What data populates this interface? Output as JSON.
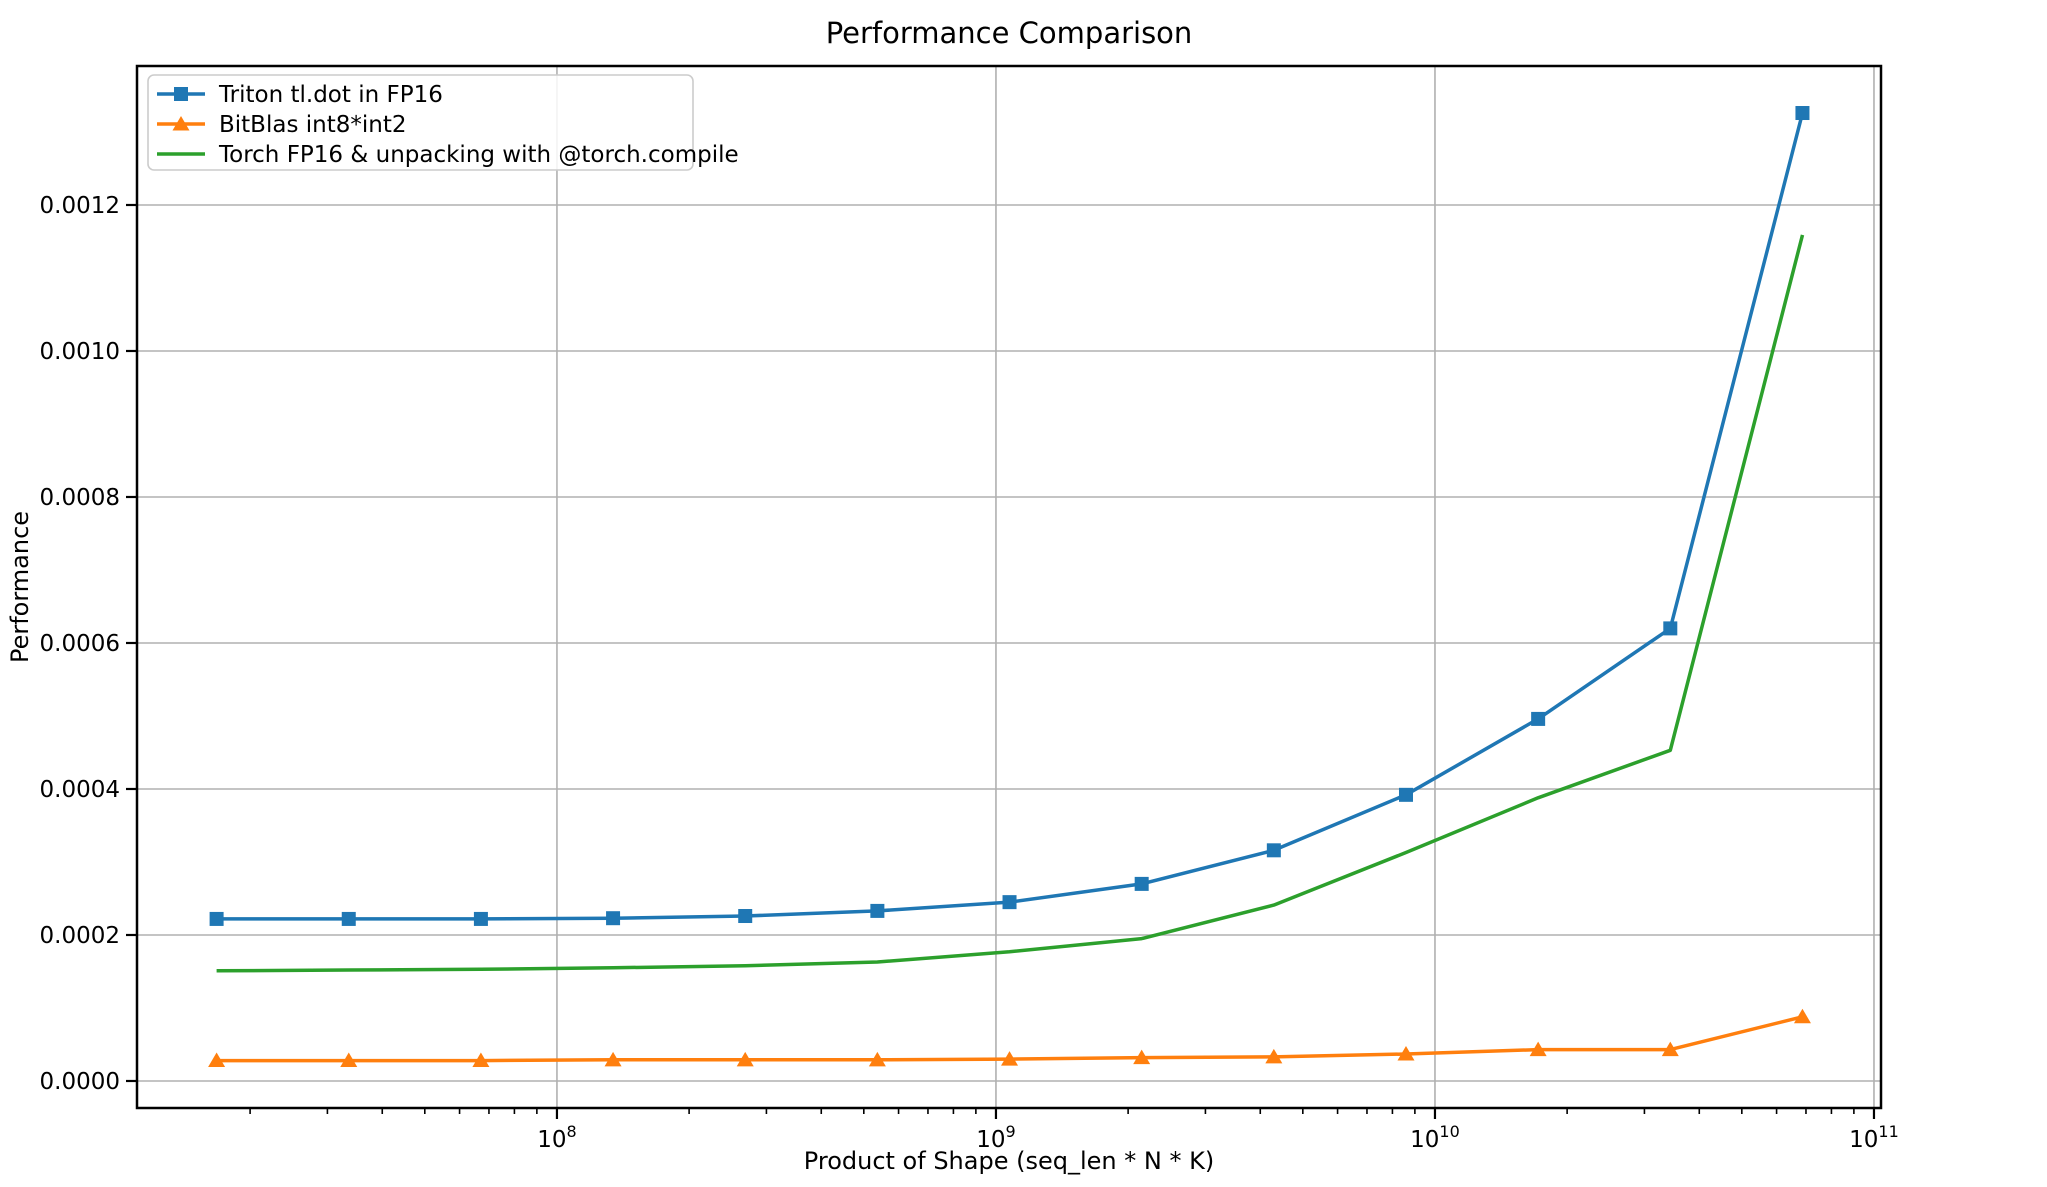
{
  "chart_data": {
    "type": "line",
    "title": "Performance Comparison",
    "xlabel": "Product of Shape (seq_len * N * K)",
    "ylabel": "Performance",
    "x_scale": "log10",
    "xlim_log10": [
      7.0434,
      11.016
    ],
    "ylim": [
      -3.7e-05,
      0.0013904
    ],
    "x_major_tick_exponents": [
      8,
      9,
      10,
      11
    ],
    "y_ticks": [
      0.0,
      0.0002,
      0.0004,
      0.0006,
      0.0008,
      0.001,
      0.0012
    ],
    "y_tick_labels": [
      "0.0000",
      "0.0002",
      "0.0004",
      "0.0006",
      "0.0008",
      "0.0010",
      "0.0012"
    ],
    "grid": true,
    "legend_position": "upper-left",
    "x": [
      16777216,
      33554432,
      67108864,
      134217728,
      268435456,
      536870912,
      1073741824,
      2147483648,
      4294967296,
      8589934592,
      17179869184,
      34359738368,
      68719476736
    ],
    "series": [
      {
        "name": "Triton tl.dot in FP16",
        "color": "#1f77b4",
        "marker": "square",
        "values": [
          0.000222,
          0.000222,
          0.000222,
          0.000223,
          0.000226,
          0.000233,
          0.000245,
          0.00027,
          0.000316,
          0.000392,
          0.000496,
          0.00062,
          0.001326
        ]
      },
      {
        "name": "BitBlas int8*int2",
        "color": "#ff7f0e",
        "marker": "triangle",
        "values": [
          2.8e-05,
          2.8e-05,
          2.8e-05,
          2.9e-05,
          2.9e-05,
          2.9e-05,
          3e-05,
          3.2e-05,
          3.3e-05,
          3.7e-05,
          4.3e-05,
          4.3e-05,
          8.8e-05
        ]
      },
      {
        "name": "Torch FP16 & unpacking with @torch.compile",
        "color": "#2ca02c",
        "marker": "none",
        "values": [
          0.000151,
          0.000152,
          0.000153,
          0.000155,
          0.000158,
          0.000163,
          0.000177,
          0.000195,
          0.000241,
          0.000313,
          0.000388,
          0.000453,
          0.001159
        ]
      }
    ],
    "colors": {
      "grid": "#b0b0b0",
      "spine": "#000000",
      "legend_border": "#cccccc",
      "background": "#ffffff"
    }
  }
}
